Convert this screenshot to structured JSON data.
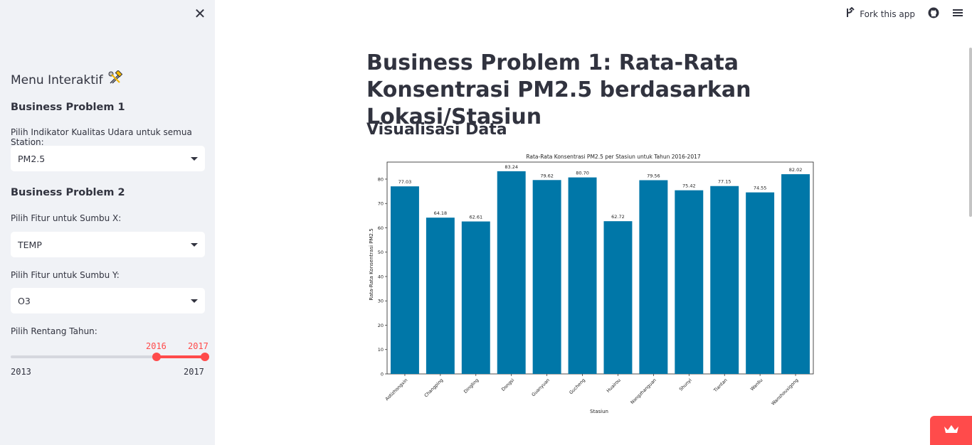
{
  "toolbar": {
    "fork_label": "Fork this app"
  },
  "sidebar": {
    "title": "Menu Interaktif",
    "bp1": {
      "heading": "Business Problem 1",
      "label": "Pilih Indikator Kualitas Udara untuk semua Station:",
      "value": "PM2.5"
    },
    "bp2": {
      "heading": "Business Problem 2",
      "x_label": "Pilih Fitur untuk Sumbu X:",
      "x_value": "TEMP",
      "y_label": "Pilih Fitur untuk Sumbu Y:",
      "y_value": "O3"
    },
    "year": {
      "label": "Pilih Rentang Tahun:",
      "min": "2013",
      "max": "2017",
      "start": "2016",
      "end": "2017"
    }
  },
  "main": {
    "title": "Business Problem 1: Rata-Rata Konsentrasi PM2.5 berdasarkan Lokasi/Stasiun",
    "subtitle": "Visualisasi Data"
  },
  "chart_data": {
    "type": "bar",
    "title": "Rata-Rata Konsentrasi PM2.5 per Stasiun untuk Tahun 2016-2017",
    "xlabel": "Stasiun",
    "ylabel": "Rata-Rata Konsentrasi PM2.5",
    "ylim": [
      0,
      87
    ],
    "yticks": [
      0,
      10,
      20,
      30,
      40,
      50,
      60,
      70,
      80
    ],
    "color": "#0077a8",
    "categories": [
      "Aotizhongxin",
      "Changping",
      "Dingling",
      "Dongsi",
      "Guanyuan",
      "Gucheng",
      "Huairou",
      "Nongzhanguan",
      "Shunyi",
      "Tiantan",
      "Wanliu",
      "Wanshouxigong"
    ],
    "values": [
      77.03,
      64.18,
      62.61,
      83.24,
      79.62,
      80.7,
      62.72,
      79.56,
      75.42,
      77.15,
      74.55,
      82.02
    ],
    "value_labels": [
      "77.03",
      "64.18",
      "62.61",
      "83.24",
      "79.62",
      "80.70",
      "62.72",
      "79.56",
      "75.42",
      "77.15",
      "74.55",
      "82.02"
    ]
  }
}
